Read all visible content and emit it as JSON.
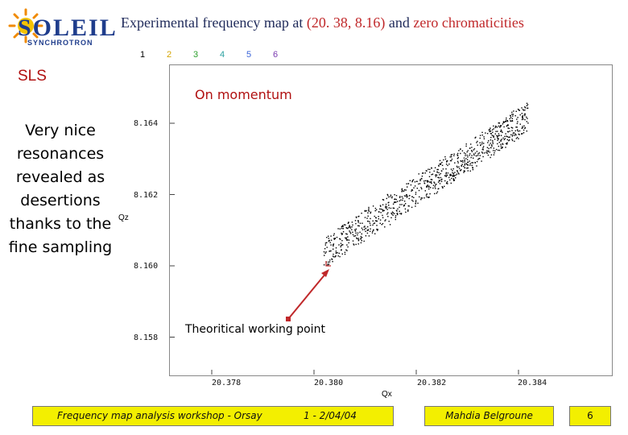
{
  "logo": {
    "wordmark": "SOLEIL",
    "subtext": "SYNCHROTRON"
  },
  "header": {
    "title_part1": "Experimental frequency map at",
    "title_part2": "(20. 38, 8.16)",
    "title_part3": "and",
    "title_part4": "zero chromaticities"
  },
  "legend": [
    {
      "label": "1",
      "color": "#000000"
    },
    {
      "label": "2",
      "color": "#d4a400"
    },
    {
      "label": "3",
      "color": "#2ca02c"
    },
    {
      "label": "4",
      "color": "#2aa0a0"
    },
    {
      "label": "5",
      "color": "#3a64d8"
    },
    {
      "label": "6",
      "color": "#7a3ab0"
    }
  ],
  "side": {
    "machine": "SLS",
    "note": "Very nice resonances revealed as desertions thanks to the fine sampling"
  },
  "plot": {
    "label": "On momentum",
    "annotation": "Theoritical working point",
    "ylabel": "Qz",
    "xlabel": "Qx"
  },
  "chart_data": {
    "type": "scatter",
    "title": "On momentum",
    "xlabel": "Qx",
    "ylabel": "Qz",
    "x_ticks": [
      "20.378",
      "20.380",
      "20.382",
      "20.384"
    ],
    "y_ticks": [
      "8.164",
      "8.162",
      "8.160",
      "8.158"
    ],
    "xlim": [
      20.3765,
      20.3845
    ],
    "ylim": [
      8.1575,
      8.1655
    ],
    "point_cloud": {
      "description_ref": "diagonal band of tune points",
      "start": {
        "x": 20.3802,
        "y": 8.1604
      },
      "end": {
        "x": 20.3842,
        "y": 8.1642
      }
    },
    "working_point": {
      "x": 20.38,
      "y": 8.16
    }
  },
  "footer": {
    "workshop": "Frequency map analysis workshop - Orsay",
    "date": "1 - 2/04/04",
    "author": "Mahdia Belgroune",
    "page": "6"
  }
}
